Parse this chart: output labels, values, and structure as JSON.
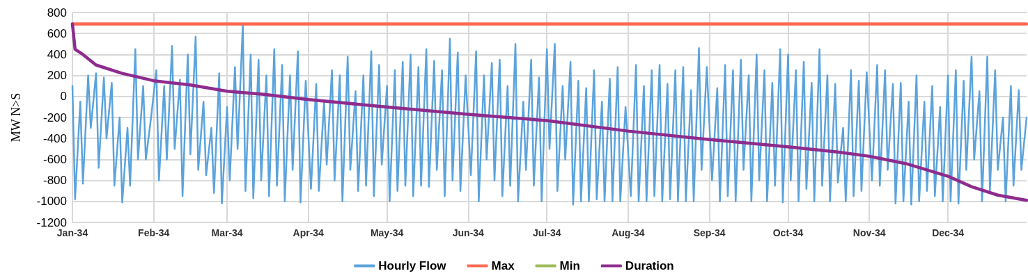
{
  "chart_data": {
    "type": "line",
    "ylabel": "MW N>S",
    "xlim": [
      "2034-01-01",
      "2034-12-31"
    ],
    "xticks": [
      {
        "value": "2034-01-01",
        "label": "Jan-34"
      },
      {
        "value": "2034-02-01",
        "label": "Feb-34"
      },
      {
        "value": "2034-03-01",
        "label": "Mar-34"
      },
      {
        "value": "2034-04-01",
        "label": "Apr-34"
      },
      {
        "value": "2034-05-01",
        "label": "May-34"
      },
      {
        "value": "2034-06-01",
        "label": "Jun-34"
      },
      {
        "value": "2034-07-01",
        "label": "Jul-34"
      },
      {
        "value": "2034-08-01",
        "label": "Aug-34"
      },
      {
        "value": "2034-09-01",
        "label": "Sep-34"
      },
      {
        "value": "2034-10-01",
        "label": "Oct-34"
      },
      {
        "value": "2034-11-01",
        "label": "Nov-34"
      },
      {
        "value": "2034-12-01",
        "label": "Dec-34"
      }
    ],
    "ylim": [
      -1200,
      800
    ],
    "yticks": [
      -1200,
      -1000,
      -800,
      -600,
      -400,
      -200,
      0,
      200,
      400,
      600,
      800
    ],
    "grid": true,
    "legend": "bottom",
    "marker": "none",
    "line_style": "solid",
    "series": [
      {
        "name": "Hourly Flow",
        "color": "#5ba3dc",
        "x": [
          "2034-01-01",
          "2034-01-02",
          "2034-01-04",
          "2034-01-05",
          "2034-01-07",
          "2034-01-08",
          "2034-01-10",
          "2034-01-11",
          "2034-01-13",
          "2034-01-14",
          "2034-01-16",
          "2034-01-17",
          "2034-01-19",
          "2034-01-20",
          "2034-01-22",
          "2034-01-23",
          "2034-01-25",
          "2034-01-26",
          "2034-01-28",
          "2034-01-29",
          "2034-01-31",
          "2034-02-02",
          "2034-02-03",
          "2034-02-05",
          "2034-02-06",
          "2034-02-08",
          "2034-02-09",
          "2034-02-11",
          "2034-02-12",
          "2034-02-14",
          "2034-02-15",
          "2034-02-17",
          "2034-02-18",
          "2034-02-20",
          "2034-02-21",
          "2034-02-23",
          "2034-02-24",
          "2034-02-26",
          "2034-02-27",
          "2034-03-01",
          "2034-03-02",
          "2034-03-04",
          "2034-03-05",
          "2034-03-07",
          "2034-03-08",
          "2034-03-10",
          "2034-03-11",
          "2034-03-13",
          "2034-03-14",
          "2034-03-16",
          "2034-03-17",
          "2034-03-19",
          "2034-03-20",
          "2034-03-22",
          "2034-03-23",
          "2034-03-25",
          "2034-03-26",
          "2034-03-28",
          "2034-03-29",
          "2034-03-31",
          "2034-04-02",
          "2034-04-04",
          "2034-04-05",
          "2034-04-07",
          "2034-04-08",
          "2034-04-10",
          "2034-04-11",
          "2034-04-13",
          "2034-04-14",
          "2034-04-16",
          "2034-04-17",
          "2034-04-19",
          "2034-04-20",
          "2034-04-22",
          "2034-04-23",
          "2034-04-25",
          "2034-04-26",
          "2034-04-28",
          "2034-04-29",
          "2034-05-01",
          "2034-05-02",
          "2034-05-04",
          "2034-05-05",
          "2034-05-07",
          "2034-05-08",
          "2034-05-10",
          "2034-05-11",
          "2034-05-13",
          "2034-05-14",
          "2034-05-16",
          "2034-05-17",
          "2034-05-19",
          "2034-05-20",
          "2034-05-22",
          "2034-05-23",
          "2034-05-25",
          "2034-05-26",
          "2034-05-28",
          "2034-05-29",
          "2034-05-31",
          "2034-06-02",
          "2034-06-04",
          "2034-06-05",
          "2034-06-07",
          "2034-06-08",
          "2034-06-10",
          "2034-06-11",
          "2034-06-13",
          "2034-06-14",
          "2034-06-16",
          "2034-06-17",
          "2034-06-19",
          "2034-06-20",
          "2034-06-22",
          "2034-06-23",
          "2034-06-25",
          "2034-06-26",
          "2034-06-28",
          "2034-06-29",
          "2034-07-01",
          "2034-07-02",
          "2034-07-04",
          "2034-07-05",
          "2034-07-07",
          "2034-07-08",
          "2034-07-10",
          "2034-07-11",
          "2034-07-13",
          "2034-07-14",
          "2034-07-16",
          "2034-07-17",
          "2034-07-19",
          "2034-07-20",
          "2034-07-22",
          "2034-07-23",
          "2034-07-25",
          "2034-07-26",
          "2034-07-28",
          "2034-07-29",
          "2034-07-31",
          "2034-08-02",
          "2034-08-04",
          "2034-08-05",
          "2034-08-07",
          "2034-08-08",
          "2034-08-10",
          "2034-08-11",
          "2034-08-13",
          "2034-08-14",
          "2034-08-16",
          "2034-08-17",
          "2034-08-19",
          "2034-08-20",
          "2034-08-22",
          "2034-08-23",
          "2034-08-25",
          "2034-08-26",
          "2034-08-28",
          "2034-08-29",
          "2034-08-31",
          "2034-09-02",
          "2034-09-04",
          "2034-09-05",
          "2034-09-07",
          "2034-09-08",
          "2034-09-10",
          "2034-09-11",
          "2034-09-13",
          "2034-09-14",
          "2034-09-16",
          "2034-09-17",
          "2034-09-19",
          "2034-09-20",
          "2034-09-22",
          "2034-09-23",
          "2034-09-25",
          "2034-09-26",
          "2034-09-28",
          "2034-09-29",
          "2034-10-01",
          "2034-10-02",
          "2034-10-04",
          "2034-10-05",
          "2034-10-07",
          "2034-10-08",
          "2034-10-10",
          "2034-10-11",
          "2034-10-13",
          "2034-10-14",
          "2034-10-16",
          "2034-10-17",
          "2034-10-19",
          "2034-10-20",
          "2034-10-22",
          "2034-10-23",
          "2034-10-25",
          "2034-10-26",
          "2034-10-28",
          "2034-10-29",
          "2034-10-31",
          "2034-11-02",
          "2034-11-04",
          "2034-11-05",
          "2034-11-07",
          "2034-11-08",
          "2034-11-10",
          "2034-11-11",
          "2034-11-13",
          "2034-11-14",
          "2034-11-16",
          "2034-11-17",
          "2034-11-19",
          "2034-11-20",
          "2034-11-22",
          "2034-11-23",
          "2034-11-25",
          "2034-11-26",
          "2034-11-28",
          "2034-11-29",
          "2034-12-01",
          "2034-12-02",
          "2034-12-04",
          "2034-12-05",
          "2034-12-07",
          "2034-12-08",
          "2034-12-10",
          "2034-12-11",
          "2034-12-13",
          "2034-12-14",
          "2034-12-16",
          "2034-12-17",
          "2034-12-19",
          "2034-12-20",
          "2034-12-22",
          "2034-12-23",
          "2034-12-25",
          "2034-12-26",
          "2034-12-28",
          "2034-12-29",
          "2034-12-31"
        ],
        "values": [
          100,
          -980,
          -50,
          -830,
          200,
          -300,
          220,
          -680,
          180,
          -400,
          130,
          -850,
          -200,
          -1010,
          -300,
          -850,
          450,
          -600,
          100,
          -600,
          -200,
          250,
          -800,
          100,
          -600,
          480,
          -500,
          160,
          -950,
          400,
          -550,
          570,
          -700,
          -50,
          -750,
          -300,
          -920,
          220,
          -1020,
          -100,
          -800,
          280,
          -500,
          680,
          -900,
          400,
          -970,
          350,
          -800,
          200,
          -950,
          450,
          -850,
          300,
          -1000,
          200,
          -700,
          430,
          -1010,
          150,
          -880,
          120,
          -900,
          -50,
          -650,
          250,
          -800,
          200,
          -1000,
          380,
          -700,
          50,
          -900,
          200,
          -850,
          430,
          -950,
          300,
          -650,
          100,
          -1000,
          250,
          -900,
          330,
          -850,
          400,
          -950,
          280,
          -850,
          450,
          -860,
          340,
          -700,
          250,
          -950,
          550,
          -800,
          420,
          -900,
          200,
          -750,
          430,
          -1000,
          200,
          -600,
          320,
          -800,
          350,
          -950,
          100,
          -850,
          500,
          -1000,
          -50,
          -700,
          350,
          -850,
          180,
          -1000,
          450,
          -500,
          500,
          -900,
          100,
          -600,
          330,
          -1030,
          150,
          -1000,
          80,
          -1000,
          250,
          -980,
          -50,
          -1000,
          170,
          -1000,
          280,
          -1000,
          -100,
          -950,
          300,
          -1000,
          100,
          -1000,
          250,
          -950,
          300,
          -1000,
          120,
          -980,
          250,
          -1000,
          280,
          -1000,
          60,
          -1000,
          460,
          -700,
          280,
          -800,
          80,
          -1000,
          300,
          -950,
          250,
          -1000,
          350,
          -700,
          200,
          -1000,
          400,
          -800,
          250,
          -1000,
          130,
          -850,
          450,
          -1010,
          400,
          -800,
          250,
          -1000,
          330,
          -880,
          130,
          -1000,
          450,
          -850,
          200,
          -1000,
          120,
          -820,
          -300,
          -1000,
          250,
          -950,
          150,
          -900,
          230,
          -800,
          300,
          -850,
          250,
          -700,
          120,
          -1020,
          130,
          -1000,
          -50,
          -1030,
          200,
          -1000,
          -50,
          -900,
          100,
          -950,
          -100,
          -1000,
          200,
          -1000,
          250,
          -1020,
          150,
          -700,
          380,
          -600,
          50,
          -1000,
          380,
          -900,
          250,
          -700,
          -200,
          -1000,
          100,
          -850,
          60,
          -700,
          -200
        ]
      },
      {
        "name": "Max",
        "color": "#ff6b52",
        "x": [
          "2034-01-01",
          "2034-12-31"
        ],
        "values": [
          690,
          690
        ]
      },
      {
        "name": "Min",
        "color": "#9bbb59"
      },
      {
        "name": "Duration",
        "color": "#8e2c8e",
        "x": [
          "2034-01-01",
          "2034-01-02",
          "2034-01-05",
          "2034-01-10",
          "2034-01-20",
          "2034-02-01",
          "2034-02-15",
          "2034-03-01",
          "2034-03-15",
          "2034-04-01",
          "2034-05-01",
          "2034-06-01",
          "2034-07-01",
          "2034-08-01",
          "2034-09-01",
          "2034-10-01",
          "2034-10-20",
          "2034-11-01",
          "2034-11-15",
          "2034-12-01",
          "2034-12-10",
          "2034-12-20",
          "2034-12-31"
        ],
        "values": [
          690,
          450,
          400,
          300,
          220,
          150,
          110,
          50,
          20,
          -30,
          -100,
          -170,
          -230,
          -330,
          -410,
          -480,
          -530,
          -570,
          -640,
          -760,
          -860,
          -940,
          -990
        ]
      }
    ]
  }
}
